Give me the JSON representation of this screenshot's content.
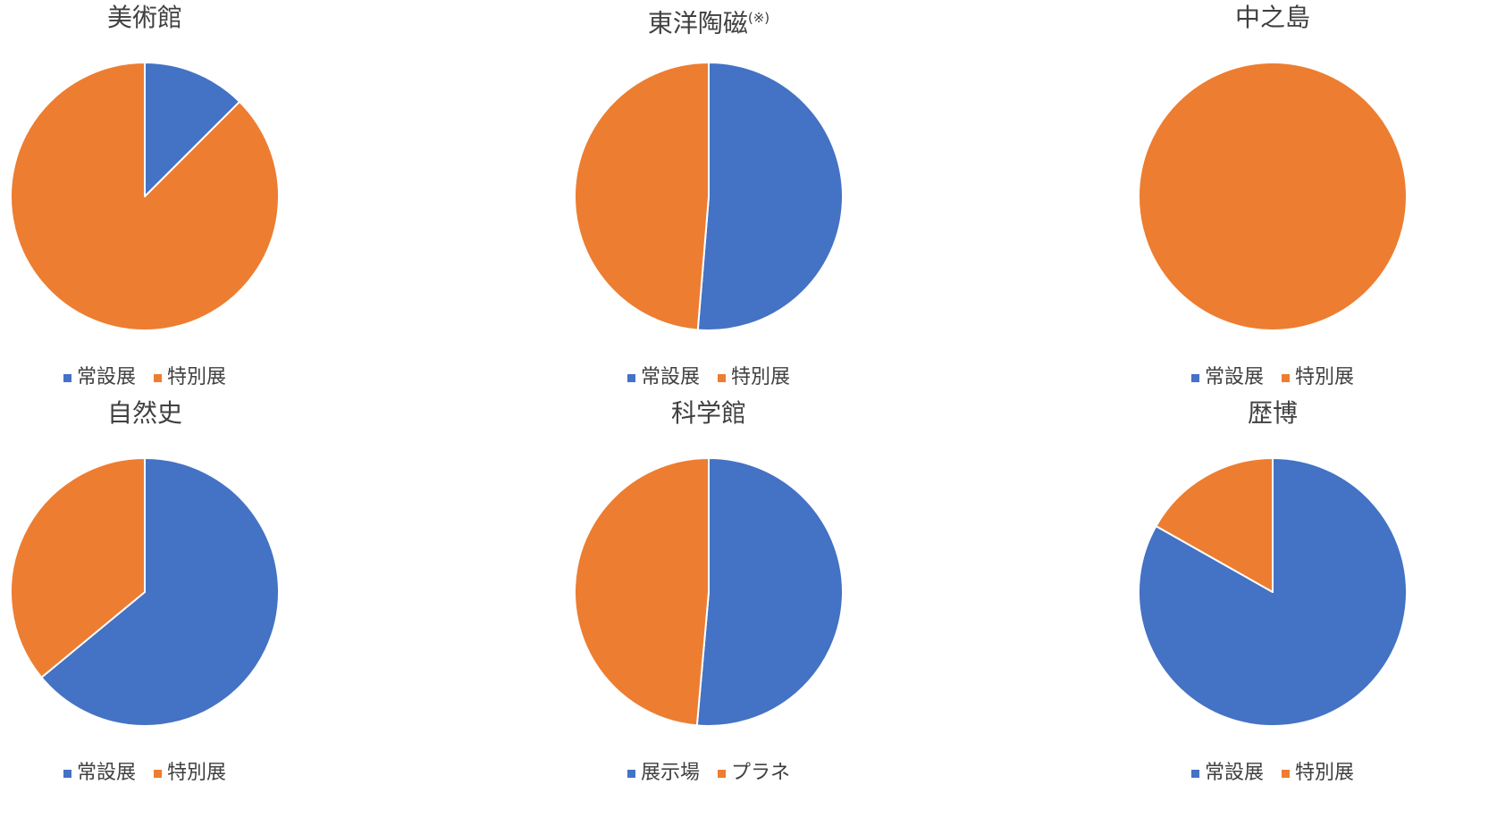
{
  "colors": {
    "series1": "#4472C4",
    "series2": "#ED7D31"
  },
  "chart_data": [
    {
      "type": "pie",
      "title": "美術館",
      "title_note": "",
      "categories": [
        "常設展",
        "特別展"
      ],
      "values": [
        12.5,
        87.5
      ],
      "legend": "bottom"
    },
    {
      "type": "pie",
      "title": "東洋陶磁",
      "title_note": "(※)",
      "categories": [
        "常設展",
        "特別展"
      ],
      "values": [
        51.3,
        48.7
      ],
      "legend": "bottom"
    },
    {
      "type": "pie",
      "title": "中之島",
      "title_note": "",
      "categories": [
        "常設展",
        "特別展"
      ],
      "values": [
        0,
        100
      ],
      "legend": "bottom"
    },
    {
      "type": "pie",
      "title": "自然史",
      "title_note": "",
      "categories": [
        "常設展",
        "特別展"
      ],
      "values": [
        64,
        36
      ],
      "legend": "bottom"
    },
    {
      "type": "pie",
      "title": "科学館",
      "title_note": "",
      "categories": [
        "展示場",
        "プラネ"
      ],
      "values": [
        51.4,
        48.6
      ],
      "legend": "bottom"
    },
    {
      "type": "pie",
      "title": "歴博",
      "title_note": "",
      "categories": [
        "常設展",
        "特別展"
      ],
      "values": [
        83.2,
        16.8
      ],
      "legend": "bottom"
    }
  ]
}
